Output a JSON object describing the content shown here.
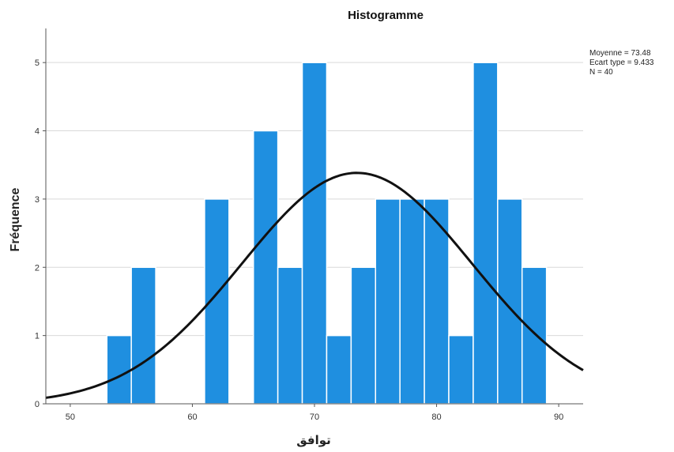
{
  "chart_data": {
    "type": "bar",
    "title": "Histogramme",
    "xlabel": "توافق",
    "ylabel": "Fréquence",
    "bar_color": "#1f8fe0",
    "bar_edge_color": "#ffffff",
    "curve_color": "#111111",
    "bin_width": 2,
    "bins": [
      {
        "start": 53,
        "end": 55,
        "count": 1
      },
      {
        "start": 55,
        "end": 57,
        "count": 2
      },
      {
        "start": 57,
        "end": 59,
        "count": 0
      },
      {
        "start": 59,
        "end": 61,
        "count": 0
      },
      {
        "start": 61,
        "end": 63,
        "count": 3
      },
      {
        "start": 63,
        "end": 65,
        "count": 0
      },
      {
        "start": 65,
        "end": 67,
        "count": 4
      },
      {
        "start": 67,
        "end": 69,
        "count": 2
      },
      {
        "start": 69,
        "end": 71,
        "count": 5
      },
      {
        "start": 71,
        "end": 73,
        "count": 1
      },
      {
        "start": 73,
        "end": 75,
        "count": 2
      },
      {
        "start": 75,
        "end": 77,
        "count": 3
      },
      {
        "start": 77,
        "end": 79,
        "count": 3
      },
      {
        "start": 79,
        "end": 81,
        "count": 3
      },
      {
        "start": 81,
        "end": 83,
        "count": 1
      },
      {
        "start": 83,
        "end": 85,
        "count": 5
      },
      {
        "start": 85,
        "end": 87,
        "count": 3
      },
      {
        "start": 87,
        "end": 89,
        "count": 2
      }
    ],
    "normal_curve": {
      "mean": 73.48,
      "sd": 9.433,
      "n": 40
    },
    "xlim": [
      48,
      92
    ],
    "ylim": [
      0,
      5.5
    ],
    "x_ticks": [
      "50",
      "60",
      "70",
      "80",
      "90"
    ],
    "y_ticks": [
      "0",
      "1",
      "2",
      "3",
      "4",
      "5"
    ],
    "grid": "horizontal",
    "stats_box": {
      "position": "top-right",
      "lines": [
        "Moyenne = 73.48",
        "Ecart type = 9.433",
        "N = 40"
      ]
    }
  }
}
